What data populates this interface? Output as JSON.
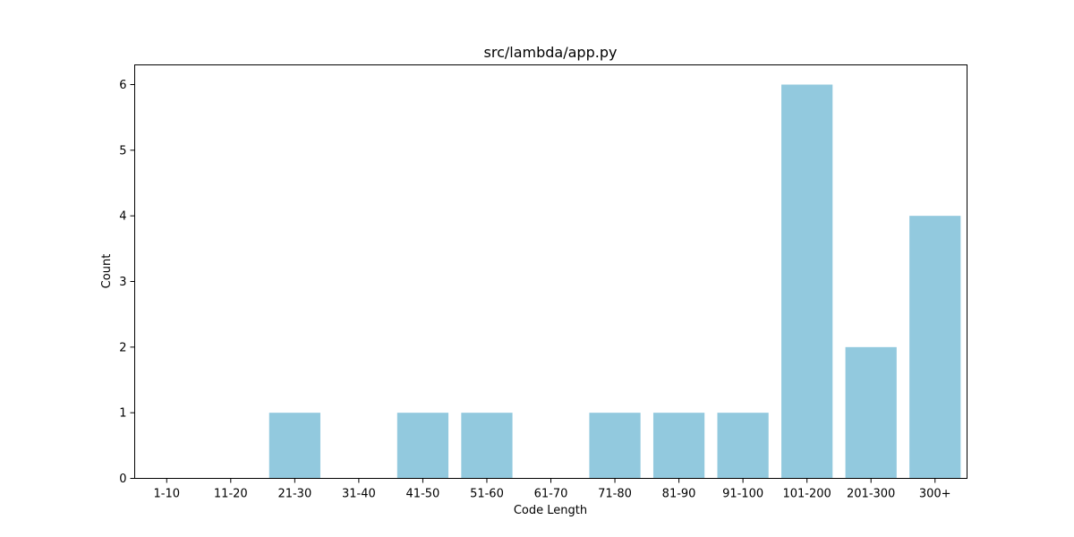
{
  "chart_data": {
    "type": "bar",
    "title": "src/lambda/app.py",
    "xlabel": "Code Length",
    "ylabel": "Count",
    "categories": [
      "1-10",
      "11-20",
      "21-30",
      "31-40",
      "41-50",
      "51-60",
      "61-70",
      "71-80",
      "81-90",
      "91-100",
      "101-200",
      "201-300",
      "300+"
    ],
    "values": [
      0,
      0,
      1,
      0,
      1,
      1,
      0,
      1,
      1,
      1,
      6,
      2,
      4
    ],
    "yticks": [
      0,
      1,
      2,
      3,
      4,
      5,
      6
    ],
    "ylim": [
      0,
      6.3
    ],
    "bar_color": "#92c9de",
    "grid": false,
    "legend": "none"
  }
}
